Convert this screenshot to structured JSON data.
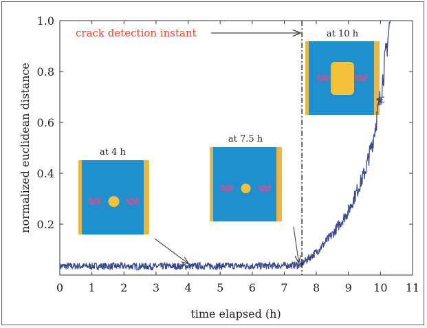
{
  "chart_data": {
    "type": "line",
    "xlabel": "time elapsed (h)",
    "ylabel": "normalized euclidean distance",
    "xlim": [
      0,
      11
    ],
    "ylim": [
      0,
      1.0
    ],
    "x_ticks": [
      "0",
      "1",
      "2",
      "3",
      "4",
      "5",
      "6",
      "7",
      "8",
      "9",
      "10",
      "11"
    ],
    "y_ticks": [
      "0.2",
      "0.4",
      "0.6",
      "0.8",
      "1.0"
    ],
    "grid": false,
    "line_color": "#3b4a8c",
    "series": [
      {
        "x": [
          0,
          1,
          2,
          3,
          4,
          5,
          6,
          7,
          7.5,
          8,
          8.5,
          9,
          9.5,
          9.75,
          10,
          10.2,
          10.3
        ],
        "y": [
          0.035,
          0.035,
          0.035,
          0.034,
          0.035,
          0.036,
          0.036,
          0.037,
          0.04,
          0.09,
          0.16,
          0.25,
          0.4,
          0.52,
          0.7,
          0.9,
          1.0
        ]
      }
    ],
    "annotations": [
      {
        "text": "crack detection instant",
        "color": "#e0452a",
        "x": 7.55
      }
    ],
    "insets": [
      {
        "label": "at 4 h",
        "points_to": [
          4.0,
          0.035
        ]
      },
      {
        "label": "at 7.5 h",
        "points_to": [
          7.45,
          0.04
        ]
      },
      {
        "label": "at 10 h",
        "points_to": [
          9.9,
          0.68
        ]
      }
    ],
    "inset_colors": {
      "background": "#1f8fce",
      "crack": "#f2c23a",
      "edge": "#e6b84a",
      "marks": "#8a6aa8"
    }
  }
}
